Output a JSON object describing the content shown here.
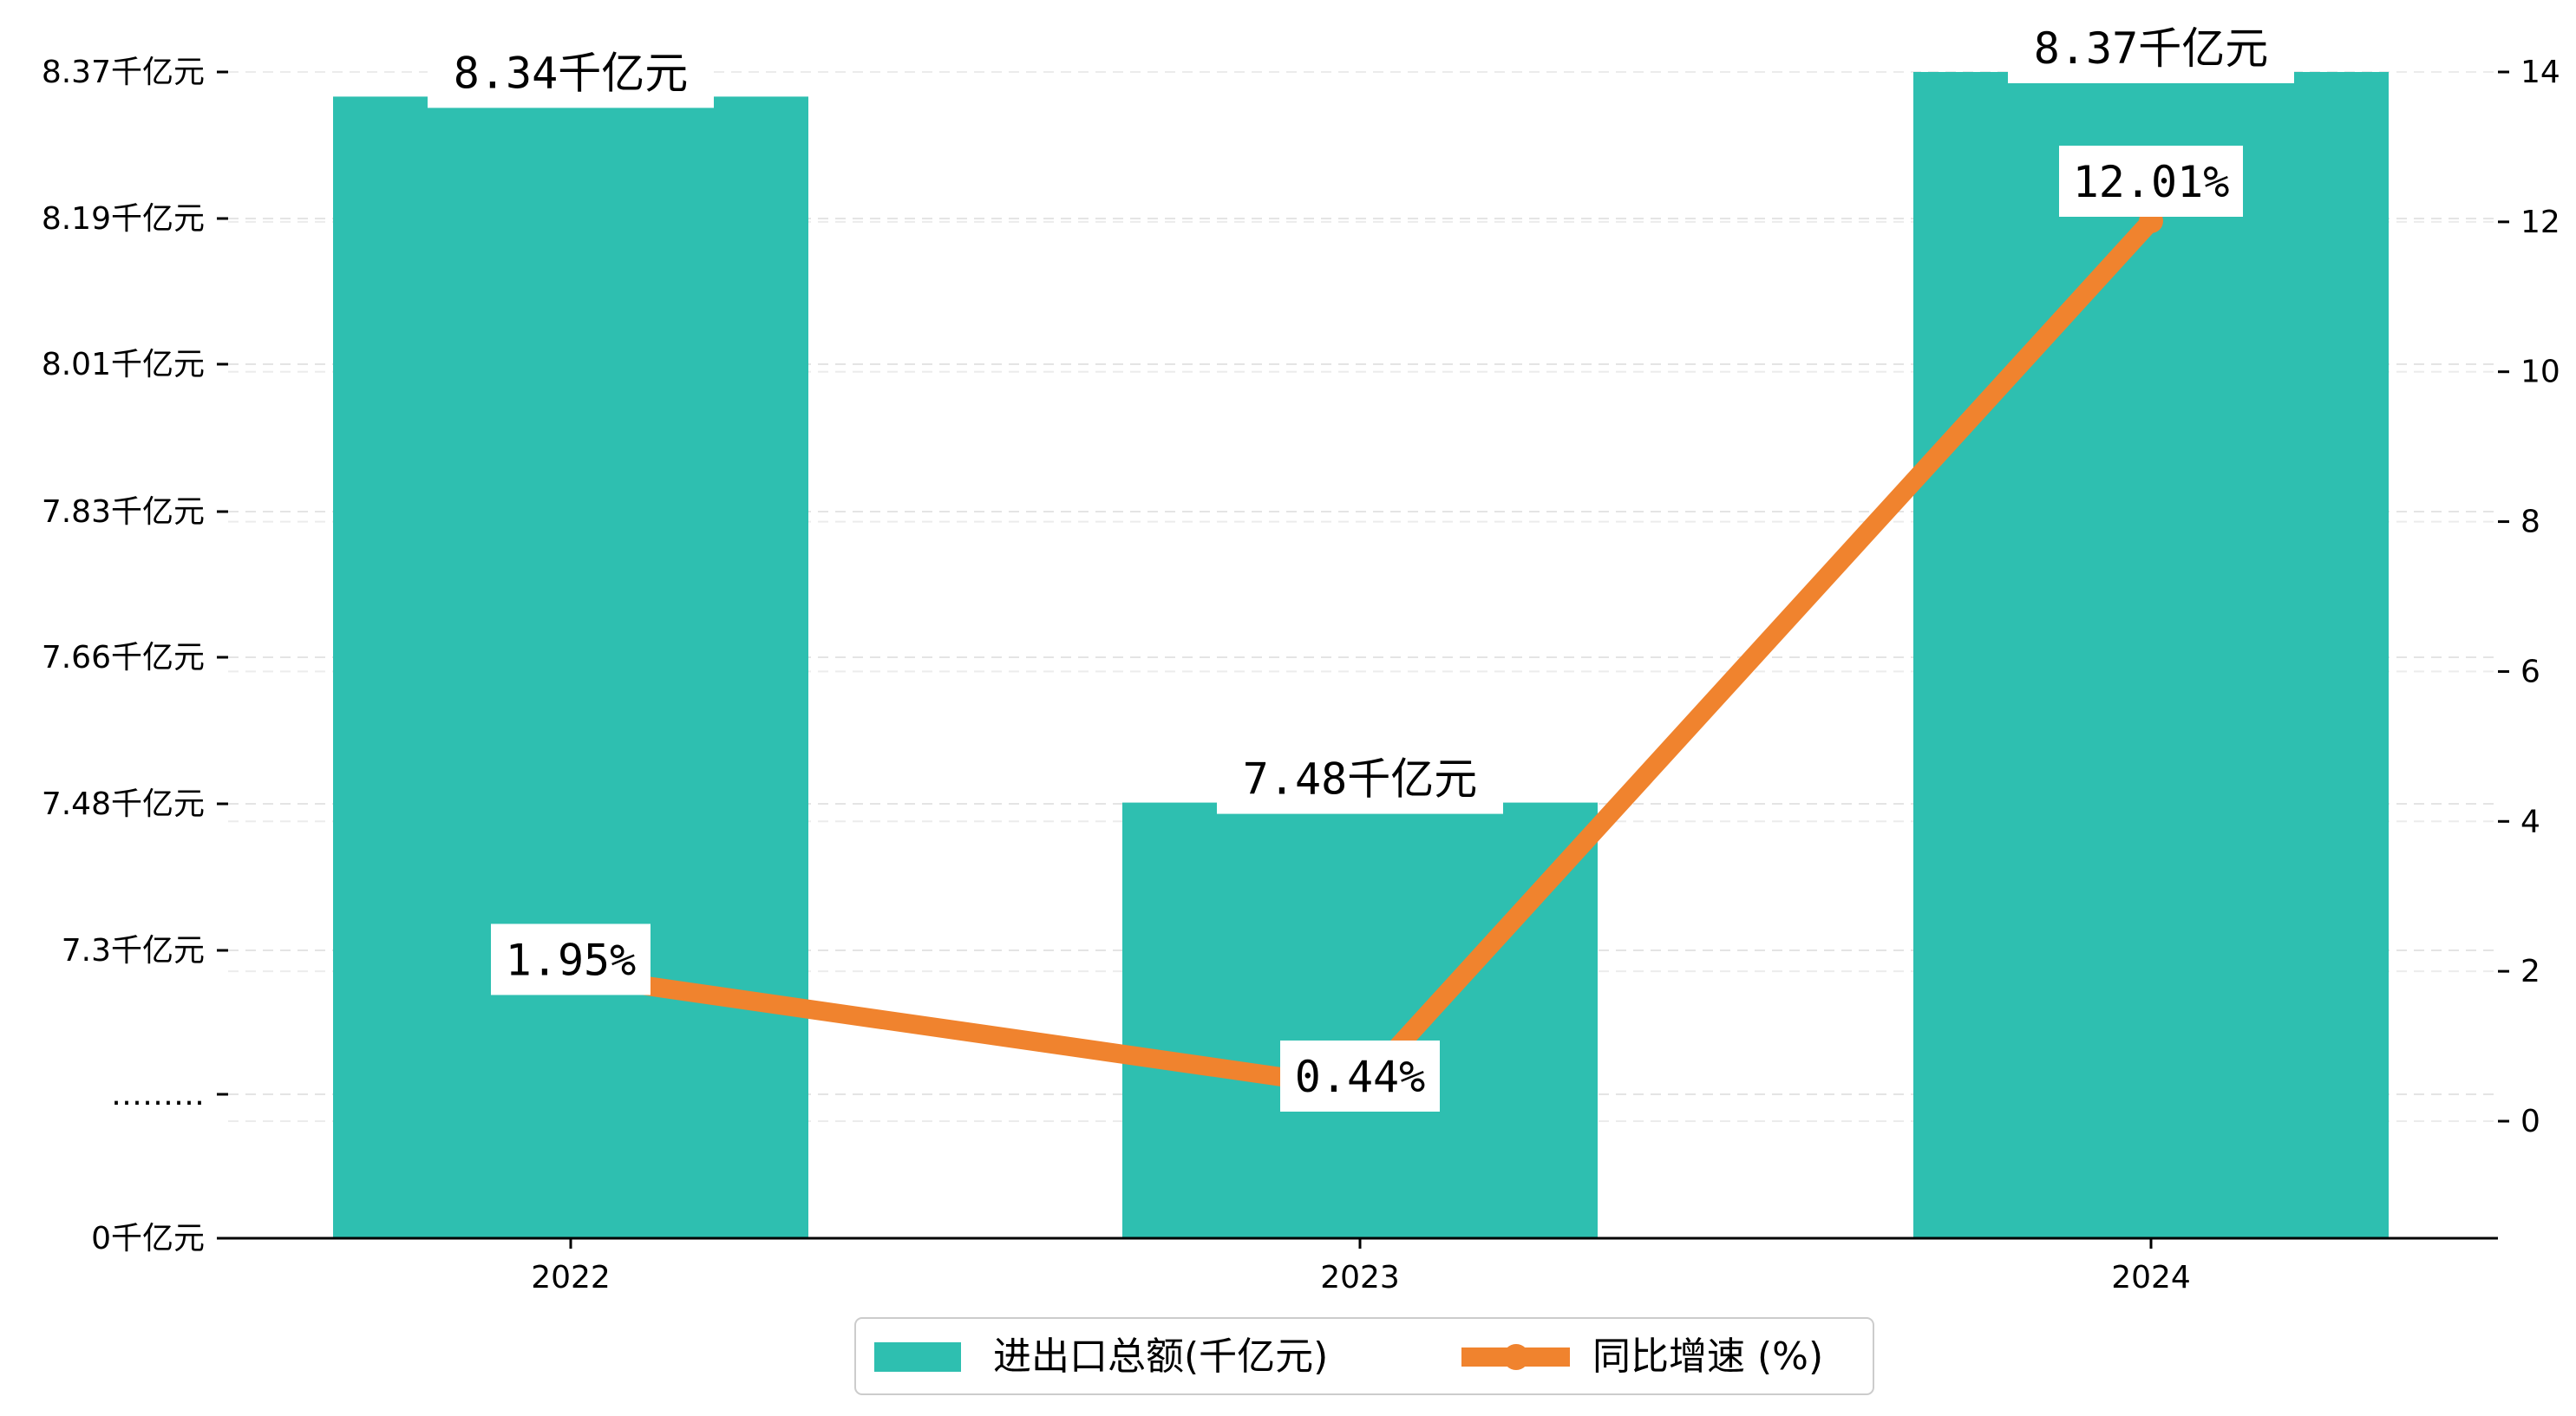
{
  "chart_data": {
    "type": "bar",
    "categories": [
      "2022",
      "2023",
      "2024"
    ],
    "series": [
      {
        "name": "进出口总额(千亿元)",
        "kind": "bar",
        "axis": "left",
        "color": "#2ebfb0",
        "values": [
          8.34,
          7.48,
          8.37
        ],
        "labels": [
          "8.34千亿元",
          "7.48千亿元",
          "8.37千亿元"
        ]
      },
      {
        "name": "同比增速 (%)",
        "kind": "line",
        "axis": "right",
        "color": "#f0832e",
        "values": [
          1.95,
          0.44,
          12.01
        ],
        "labels": [
          "1.95%",
          "0.44%",
          "12.01%"
        ]
      }
    ],
    "left_axis": {
      "ticks": [
        "8.37千亿元",
        "8.19千亿元",
        "8.01千亿元",
        "7.83千亿元",
        "7.66千亿元",
        "7.48千亿元",
        "7.3千亿元",
        "………",
        "0千亿元"
      ],
      "break": true
    },
    "right_axis": {
      "ticks": [
        14,
        12,
        10,
        8,
        6,
        4,
        2,
        0
      ],
      "ylim": [
        -1.5,
        14
      ]
    },
    "grid": true,
    "legend": "bottom-center",
    "title": "",
    "xlabel": "",
    "ylabel": ""
  }
}
